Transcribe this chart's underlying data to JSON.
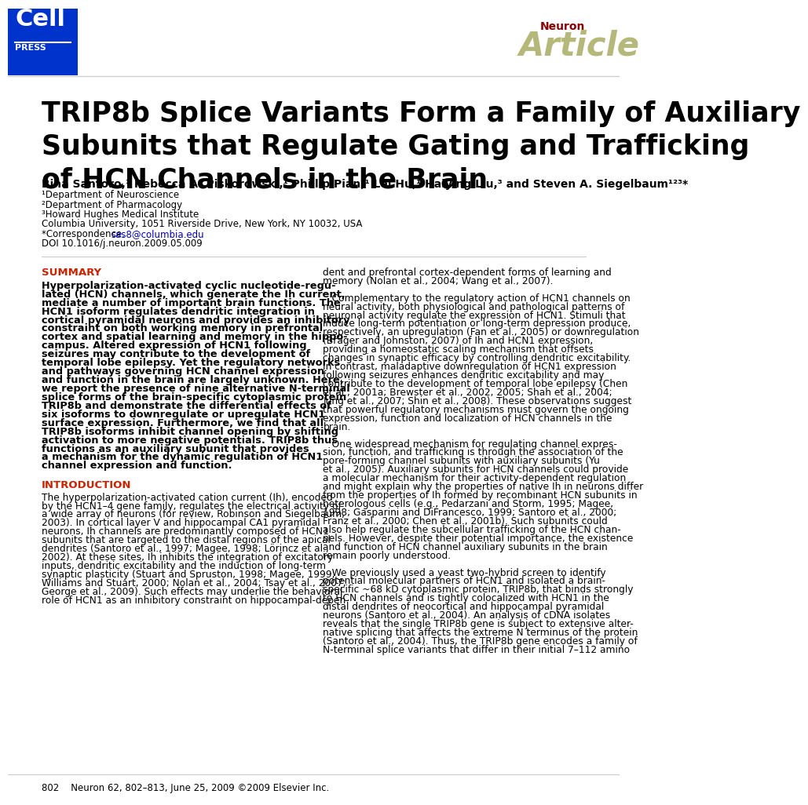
{
  "bg_color": "#ffffff",
  "cell_press_bg": "#0033cc",
  "neuron_color": "#8b0000",
  "article_color": "#b5b878",
  "title": "TRIP8b Splice Variants Form a Family of Auxiliary\nSubunits that Regulate Gating and Trafficking\nof HCN Channels in the Brain",
  "authors": "Bina Santoro,¹ Rebecca A. Piskorowski,¹ Phillip Pian,¹ Lei Hu,¹ Haiying Liu,³ and Steven A. Siegelbaum¹²³*",
  "affiliations": [
    "¹Department of Neuroscience",
    "²Department of Pharmacology",
    "³Howard Hughes Medical Institute",
    "Columbia University, 1051 Riverside Drive, New York, NY 10032, USA",
    "*Correspondence: sas8@columbia.edu",
    "DOI 10.1016/j.neuron.2009.05.009"
  ],
  "summary_header": "SUMMARY",
  "intro_header": "INTRODUCTION",
  "page_footer": "802    Neuron 62, 802–813, June 25, 2009 ©2009 Elsevier Inc.",
  "divider_color": "#cccccc",
  "header_color": "#cc2200",
  "link_color": "#0000cc",
  "summary_lines": [
    "Hyperpolarization-activated cyclic nucleotide-regu-",
    "lated (HCN) channels, which generate the Ih current,",
    "mediate a number of important brain functions. The",
    "HCN1 isoform regulates dendritic integration in",
    "cortical pyramidal neurons and provides an inhibitory",
    "constraint on both working memory in prefrontal",
    "cortex and spatial learning and memory in the hippo-",
    "campus. Altered expression of HCN1 following",
    "seizures may contribute to the development of",
    "temporal lobe epilepsy. Yet the regulatory networks",
    "and pathways governing HCN channel expression",
    "and function in the brain are largely unknown. Here,",
    "we report the presence of nine alternative N-terminal",
    "splice forms of the brain-specific cytoplasmic protein",
    "TRIP8b and demonstrate the differential effects of",
    "six isoforms to downregulate or upregulate HCN1",
    "surface expression. Furthermore, we find that all",
    "TRIP8b isoforms inhibit channel opening by shifting",
    "activation to more negative potentials. TRIP8b thus",
    "functions as an auxiliary subunit that provides",
    "a mechanism for the dynamic regulation of HCN1",
    "channel expression and function."
  ],
  "right_col_lines": [
    "dent and prefrontal cortex-dependent forms of learning and",
    "memory (Nolan et al., 2004; Wang et al., 2007).",
    "",
    "   Complementary to the regulatory action of HCN1 channels on",
    "neural activity, both physiological and pathological patterns of",
    "neuronal activity regulate the expression of HCN1. Stimuli that",
    "induce long-term potentiation or long-term depression produce,",
    "respectively, an upregulation (Fan et al., 2005) or downregulation",
    "(Brager and Johnston, 2007) of Ih and HCN1 expression,",
    "providing a homeostatic scaling mechanism that offsets",
    "changes in synaptic efficacy by controlling dendritic excitability.",
    "In contrast, maladaptive downregulation of HCN1 expression",
    "following seizures enhances dendritic excitability and may",
    "contribute to the development of temporal lobe epilepsy (Chen",
    "et al., 2001a; Brewster et al., 2002, 2005; Shah et al., 2004;",
    "Jung et al., 2007; Shin et al., 2008). These observations suggest",
    "that powerful regulatory mechanisms must govern the ongoing",
    "expression, function and localization of HCN channels in the",
    "brain.",
    "",
    "   One widespread mechanism for regulating channel expres-",
    "sion, function, and trafficking is through the association of the",
    "pore-forming channel subunits with auxiliary subunits (Yu",
    "et al., 2005). Auxiliary subunits for HCN channels could provide",
    "a molecular mechanism for their activity-dependent regulation",
    "and might explain why the properties of native Ih in neurons differ",
    "from the properties of Ih formed by recombinant HCN subunits in",
    "heterologous cells (e.g., Pedarzani and Storm, 1995; Magee,",
    "1998; Gasparini and DiFrancesco, 1999; Santoro et al., 2000;",
    "Franz et al., 2000; Chen et al., 2001b). Such subunits could",
    "also help regulate the subcellular trafficking of the HCN chan-",
    "nels. However, despite their potential importance, the existence",
    "and function of HCN channel auxiliary subunits in the brain",
    "remain poorly understood.",
    "",
    "   We previously used a yeast two-hybrid screen to identify",
    "potential molecular partners of HCN1 and isolated a brain-",
    "specific ~68 kD cytoplasmic protein, TRIP8b, that binds strongly",
    "to HCN channels and is tightly colocalized with HCN1 in the",
    "distal dendrites of neocortical and hippocampal pyramidal",
    "neurons (Santoro et al., 2004). An analysis of cDNA isolates",
    "reveals that the single TRIP8b gene is subject to extensive alter-",
    "native splicing that affects the extreme N terminus of the protein",
    "(Santoro et al., 2004). Thus, the TRIP8b gene encodes a family of",
    "N-terminal splice variants that differ in their initial 7–112 amino"
  ],
  "intro_lines": [
    "The hyperpolarization-activated cation current (Ih), encoded",
    "by the HCN1–4 gene family, regulates the electrical activity of",
    "a wide array of neurons (for review, Robinson and Siegelbaum,",
    "2003). In cortical layer V and hippocampal CA1 pyramidal",
    "neurons, Ih channels are predominantly composed of HCN1",
    "subunits that are targeted to the distal regions of the apical",
    "dendrites (Santoro et al., 1997; Magee, 1998; Lörincz et al.,",
    "2002). At these sites, Ih inhibits the integration of excitatory",
    "inputs, dendritic excitability and the induction of long-term",
    "synaptic plasticity (Stuart and Spruston, 1998; Magee, 1999;",
    "Williams and Stuart, 2000; Nolan et al., 2004; Tsay et al., 2007;",
    "George et al., 2009). Such effects may underlie the behavioral",
    "role of HCN1 as an inhibitory constraint on hippocampal-depen-"
  ]
}
